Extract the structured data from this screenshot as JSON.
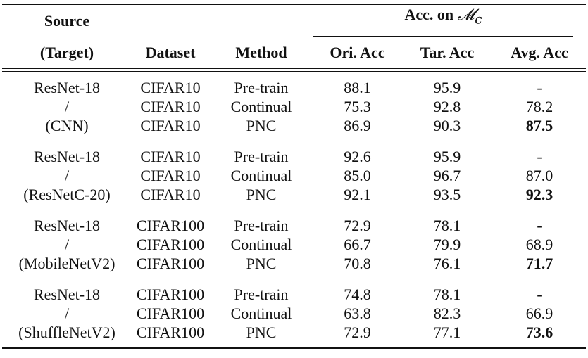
{
  "header": {
    "source": "Source",
    "target": "(Target)",
    "dataset": "Dataset",
    "method": "Method",
    "acc_group": "Acc. on",
    "acc_group_symbol": "𝓜",
    "acc_group_sub": "c",
    "ori_acc": "Ori. Acc",
    "tar_acc": "Tar. Acc",
    "avg_acc": "Avg. Acc"
  },
  "groups": [
    {
      "source_lines": [
        "ResNet-18",
        "/",
        "(CNN)"
      ],
      "rows": [
        {
          "dataset": "CIFAR10",
          "method": "Pre-train",
          "ori": "88.1",
          "tar": "95.9",
          "avg": "-",
          "bold": false
        },
        {
          "dataset": "CIFAR10",
          "method": "Continual",
          "ori": "75.3",
          "tar": "92.8",
          "avg": "78.2",
          "bold": false
        },
        {
          "dataset": "CIFAR10",
          "method": "PNC",
          "ori": "86.9",
          "tar": "90.3",
          "avg": "87.5",
          "bold": true
        }
      ]
    },
    {
      "source_lines": [
        "ResNet-18",
        "/",
        "(ResNetC-20)"
      ],
      "rows": [
        {
          "dataset": "CIFAR10",
          "method": "Pre-train",
          "ori": "92.6",
          "tar": "95.9",
          "avg": "-",
          "bold": false
        },
        {
          "dataset": "CIFAR10",
          "method": "Continual",
          "ori": "85.0",
          "tar": "96.7",
          "avg": "87.0",
          "bold": false
        },
        {
          "dataset": "CIFAR10",
          "method": "PNC",
          "ori": "92.1",
          "tar": "93.5",
          "avg": "92.3",
          "bold": true
        }
      ]
    },
    {
      "source_lines": [
        "ResNet-18",
        "/",
        "(MobileNetV2)"
      ],
      "rows": [
        {
          "dataset": "CIFAR100",
          "method": "Pre-train",
          "ori": "72.9",
          "tar": "78.1",
          "avg": "-",
          "bold": false
        },
        {
          "dataset": "CIFAR100",
          "method": "Continual",
          "ori": "66.7",
          "tar": "79.9",
          "avg": "68.9",
          "bold": false
        },
        {
          "dataset": "CIFAR100",
          "method": "PNC",
          "ori": "70.8",
          "tar": "76.1",
          "avg": "71.7",
          "bold": true
        }
      ]
    },
    {
      "source_lines": [
        "ResNet-18",
        "/",
        "(ShuffleNetV2)"
      ],
      "rows": [
        {
          "dataset": "CIFAR100",
          "method": "Pre-train",
          "ori": "74.8",
          "tar": "78.1",
          "avg": "-",
          "bold": false
        },
        {
          "dataset": "CIFAR100",
          "method": "Continual",
          "ori": "63.8",
          "tar": "82.3",
          "avg": "66.9",
          "bold": false
        },
        {
          "dataset": "CIFAR100",
          "method": "PNC",
          "ori": "72.9",
          "tar": "77.1",
          "avg": "73.6",
          "bold": true
        }
      ]
    }
  ]
}
